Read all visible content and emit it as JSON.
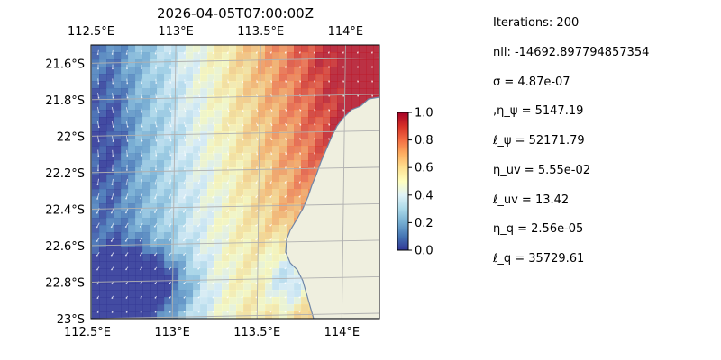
{
  "chart_data": {
    "type": "heatmap",
    "title": "2026-04-05T07:00:00Z",
    "x_ticks": [
      "112.5°E",
      "113°E",
      "113.5°E",
      "114°E"
    ],
    "x_tick_values": [
      112.5,
      113.0,
      113.5,
      114.0
    ],
    "y_ticks": [
      "21.6°S",
      "21.8°S",
      "22°S",
      "22.2°S",
      "22.4°S",
      "22.6°S",
      "22.8°S",
      "23°S"
    ],
    "y_tick_values": [
      -21.6,
      -21.8,
      -22.0,
      -22.2,
      -22.4,
      -22.6,
      -22.8,
      -23.0
    ],
    "xlim": [
      112.5,
      114.2
    ],
    "ylim": [
      -23.0,
      -21.5
    ],
    "grid": true,
    "colorbar": {
      "ticks": [
        "0.0",
        "0.2",
        "0.4",
        "0.6",
        "0.8",
        "1.0"
      ],
      "tick_values": [
        0.0,
        0.2,
        0.4,
        0.6,
        0.8,
        1.0
      ],
      "range": [
        0.0,
        1.0
      ],
      "colors": [
        "#313695",
        "#4575b4",
        "#74add1",
        "#abd9e9",
        "#e0f3f8",
        "#ffffbf",
        "#fee090",
        "#fdae61",
        "#f46d43",
        "#d73027",
        "#a50026"
      ]
    },
    "colors": {
      "land": "#efefdf",
      "coastline": "#6f86a8",
      "ocean_background": "#a9c4e6",
      "arrows": "#ffffff",
      "grid": "#b0b0b0"
    }
  },
  "stats": [
    "Iterations: 200",
    "nll: -14692.897794857354",
    "σ = 4.87e-07",
    ",η_ψ = 5147.19",
    "ℓ_ψ = 52171.79",
    "η_uv = 5.55e-02",
    "ℓ_uv = 13.42",
    "η_q = 2.56e-05",
    "ℓ_q = 35729.61"
  ]
}
